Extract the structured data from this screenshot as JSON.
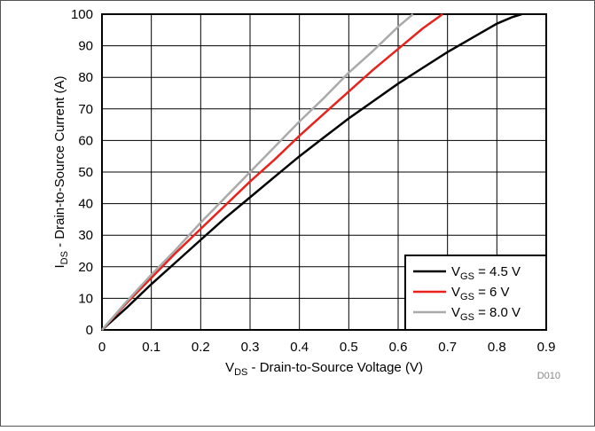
{
  "chart_data": {
    "type": "line",
    "ylabel": {
      "main": "I",
      "sub": "DS",
      "rest": " - Drain-to-Source Current (A)"
    },
    "xlabel": {
      "main": "V",
      "sub": "DS",
      "rest": " - Drain-to-Source Voltage (V)"
    },
    "xlim": [
      0,
      0.9
    ],
    "ylim": [
      0,
      100
    ],
    "xticks": [
      "0",
      "0.1",
      "0.2",
      "0.3",
      "0.4",
      "0.5",
      "0.6",
      "0.7",
      "0.8",
      "0.9"
    ],
    "yticks": [
      "0",
      "10",
      "20",
      "30",
      "40",
      "50",
      "60",
      "70",
      "80",
      "90",
      "100"
    ],
    "grid": true,
    "legend_position": "bottom-right",
    "watermark": "D010",
    "series": [
      {
        "name": {
          "main": "V",
          "sub": "GS",
          "rest": " = 4.5 V"
        },
        "color": "#000000",
        "x": [
          0,
          0.05,
          0.1,
          0.15,
          0.2,
          0.25,
          0.3,
          0.35,
          0.4,
          0.45,
          0.5,
          0.55,
          0.6,
          0.65,
          0.7,
          0.75,
          0.8,
          0.83,
          0.85
        ],
        "y": [
          0,
          7,
          14.5,
          21.5,
          28.5,
          35.5,
          42,
          48.5,
          55,
          61,
          67,
          72.5,
          78,
          83,
          88,
          92.5,
          97,
          99,
          100
        ]
      },
      {
        "name": {
          "main": "V",
          "sub": "GS",
          "rest": " = 6 V"
        },
        "color": "#e8221c",
        "x": [
          0,
          0.05,
          0.1,
          0.15,
          0.2,
          0.25,
          0.3,
          0.35,
          0.4,
          0.45,
          0.5,
          0.55,
          0.6,
          0.65,
          0.69
        ],
        "y": [
          0,
          8.5,
          16.5,
          24.5,
          32,
          39.5,
          47,
          54,
          61.5,
          68.5,
          75.5,
          82.5,
          89,
          95.5,
          100
        ]
      },
      {
        "name": {
          "main": "V",
          "sub": "GS",
          "rest": " = 8.0 V"
        },
        "color": "#aaaaaa",
        "x": [
          0,
          0.05,
          0.1,
          0.15,
          0.2,
          0.25,
          0.3,
          0.35,
          0.4,
          0.45,
          0.5,
          0.55,
          0.6,
          0.63
        ],
        "y": [
          0,
          9,
          17.5,
          25.5,
          34,
          42,
          50,
          58,
          66,
          73.5,
          81.5,
          88.5,
          96,
          100
        ]
      }
    ]
  }
}
